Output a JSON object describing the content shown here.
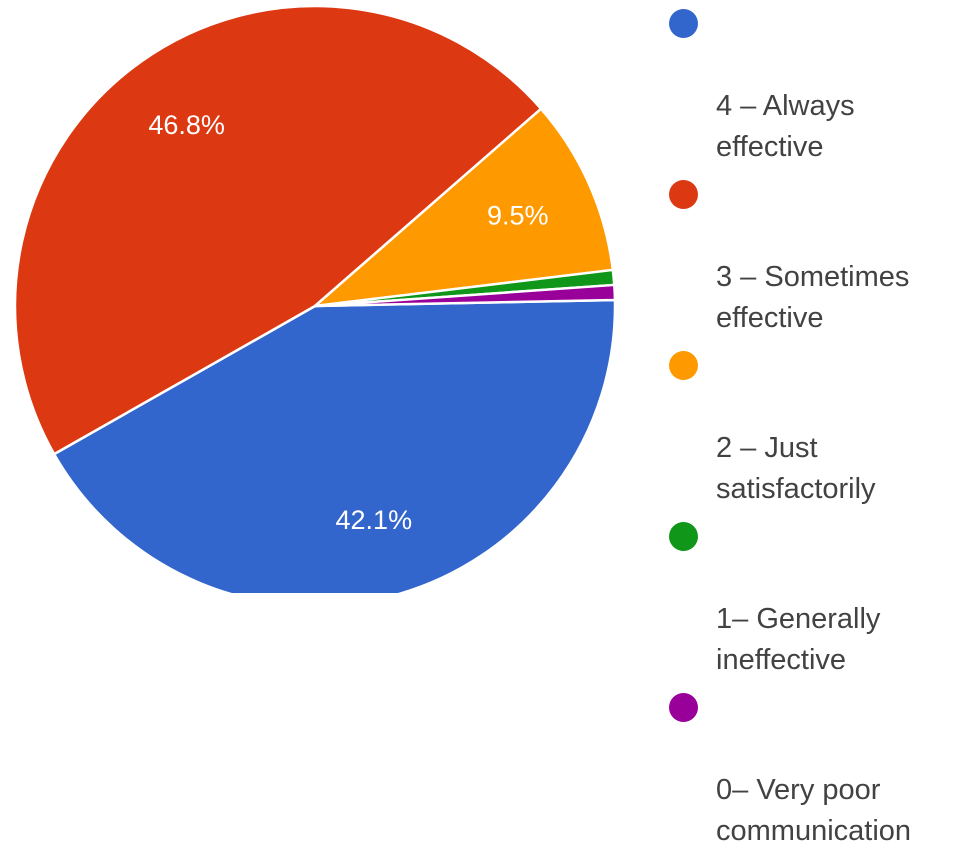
{
  "chart_data": {
    "type": "pie",
    "slices": [
      {
        "label": "4 – Always\neffective",
        "value": 42.1,
        "value_label": "42.1%",
        "color": "#3366cc"
      },
      {
        "label": "3 – Sometimes\neffective",
        "value": 46.8,
        "value_label": "46.8%",
        "color": "#dc3912"
      },
      {
        "label": "2 – Just\nsatisfactorily",
        "value": 9.5,
        "value_label": "9.5%",
        "color": "#ff9900"
      },
      {
        "label": "1– Generally\nineffective",
        "value": 0.8,
        "value_label": "",
        "color": "#109618"
      },
      {
        "label": "0– Very poor\ncommunication",
        "value": 0.8,
        "value_label": "",
        "color": "#990099"
      }
    ],
    "legend_position": "right"
  }
}
